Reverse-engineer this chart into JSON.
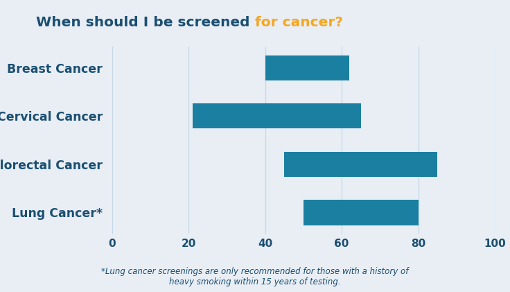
{
  "title_part1": "When should I be screened ",
  "title_part2": "for cancer?",
  "title_color1": "#1b4f72",
  "title_color2": "#f5a623",
  "categories": [
    "Breast Cancer",
    "Cervical Cancer",
    "Colorectal Cancer",
    "Lung Cancer*"
  ],
  "bar_starts": [
    40,
    21,
    45,
    50
  ],
  "bar_ends": [
    62,
    65,
    85,
    80
  ],
  "bar_color": "#1a7fa0",
  "background_color": "#e8eef4",
  "grid_color": "#c5d8e8",
  "label_color": "#1b4f72",
  "xlim": [
    0,
    100
  ],
  "xticks": [
    0,
    20,
    40,
    60,
    80,
    100
  ],
  "footnote_line1": "*Lung cancer screenings are only recommended for those with a history of",
  "footnote_line2": "heavy smoking within 15 years of testing.",
  "footnote_color": "#1b4f72",
  "figsize": [
    7.36,
    4.21
  ],
  "dpi": 100
}
